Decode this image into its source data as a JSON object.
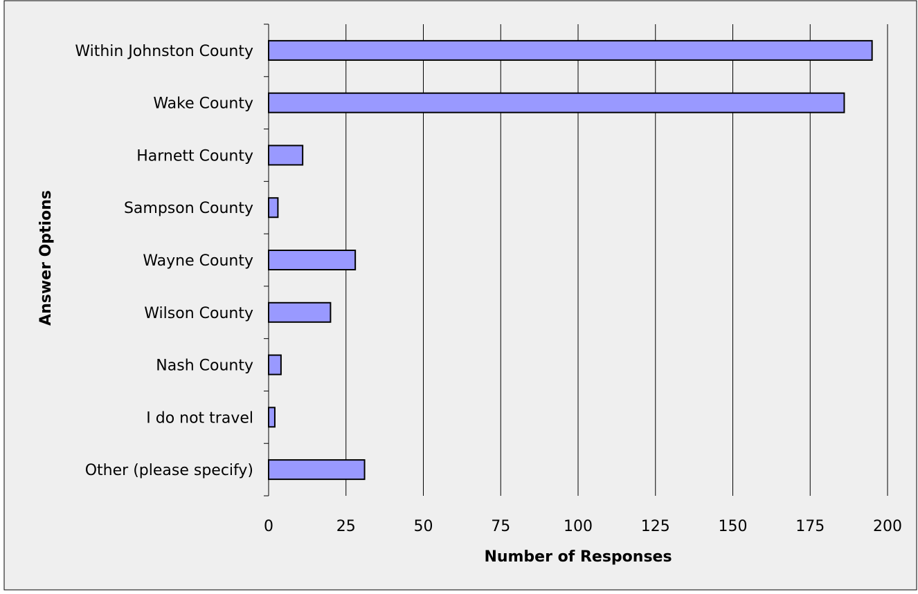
{
  "chart_data": {
    "type": "bar",
    "orientation": "horizontal",
    "title": "",
    "xlabel": "Number of Responses",
    "ylabel": "Answer Options",
    "categories": [
      "Within Johnston County",
      "Wake County",
      "Harnett County",
      "Sampson County",
      "Wayne County",
      "Wilson County",
      "Nash County",
      "I do not travel",
      "Other (please specify)"
    ],
    "values": [
      195,
      186,
      11,
      3,
      28,
      20,
      4,
      2,
      31
    ],
    "xlim": [
      0,
      200
    ],
    "xticks": [
      0,
      25,
      50,
      75,
      100,
      125,
      150,
      175,
      200
    ],
    "grid": "vertical",
    "legend": "none"
  },
  "colors": {
    "background": "#efefef",
    "bar_fill": "#9999ff",
    "bar_stroke": "#000000",
    "grid": "#000000"
  }
}
